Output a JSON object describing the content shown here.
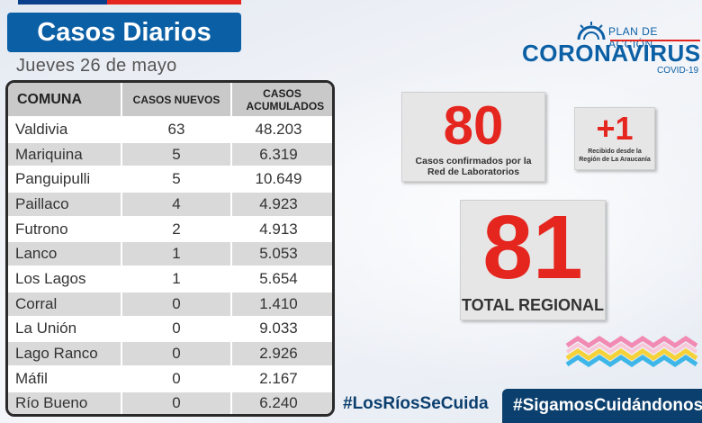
{
  "header": {
    "title": "Casos Diarios",
    "date": "Jueves 26 de mayo"
  },
  "logo": {
    "plan": "PLAN DE ACCIÓN",
    "name": "CORONAVIRUS",
    "sub": "COVID-19"
  },
  "table": {
    "headers": [
      "COMUNA",
      "CASOS NUEVOS",
      "CASOS ACUMULADOS"
    ],
    "rows": [
      {
        "comuna": "Valdivia",
        "nuevos": "63",
        "acumulados": "48.203"
      },
      {
        "comuna": "Mariquina",
        "nuevos": "5",
        "acumulados": "6.319"
      },
      {
        "comuna": "Panguipulli",
        "nuevos": "5",
        "acumulados": "10.649"
      },
      {
        "comuna": "Paillaco",
        "nuevos": "4",
        "acumulados": "4.923"
      },
      {
        "comuna": "Futrono",
        "nuevos": "2",
        "acumulados": "4.913"
      },
      {
        "comuna": "Lanco",
        "nuevos": "1",
        "acumulados": "5.053"
      },
      {
        "comuna": "Los Lagos",
        "nuevos": "1",
        "acumulados": "5.654"
      },
      {
        "comuna": "Corral",
        "nuevos": "0",
        "acumulados": "1.410"
      },
      {
        "comuna": "La Unión",
        "nuevos": "0",
        "acumulados": "9.033"
      },
      {
        "comuna": "Lago Ranco",
        "nuevos": "0",
        "acumulados": "2.926"
      },
      {
        "comuna": "Máfil",
        "nuevos": "0",
        "acumulados": "2.167"
      },
      {
        "comuna": "Río Bueno",
        "nuevos": "0",
        "acumulados": "6.240"
      }
    ]
  },
  "cards": {
    "confirmed": {
      "value": "80",
      "label": "Casos confirmados por la Red de Laboratorios"
    },
    "received": {
      "value": "+1",
      "label": "Recibido desde la Región de La Araucanía"
    },
    "total": {
      "value": "81",
      "label": "TOTAL REGIONAL"
    }
  },
  "hashtags": {
    "left": "#LosRíosSeCuida",
    "right": "#SigamosCuidándonos"
  },
  "colors": {
    "brand_blue": "#0b5fa5",
    "accent_red": "#e5261f",
    "navy": "#0b3f6e"
  }
}
